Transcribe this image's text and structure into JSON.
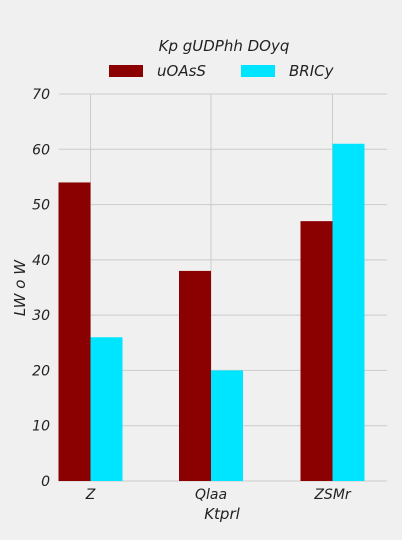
{
  "chart_data": {
    "type": "bar",
    "title": "Kp gUDPhh DOyq",
    "xlabel": "Ktprl",
    "ylabel": "LW o W",
    "categories": [
      "Z",
      "Qlaa",
      "ZSMr"
    ],
    "series": [
      {
        "name": "uOAsS",
        "values": [
          54,
          38,
          47
        ],
        "color": "#8b0000"
      },
      {
        "name": "BRICy",
        "values": [
          26,
          20,
          61
        ],
        "color": "#00e5ff"
      }
    ],
    "ylim": [
      0,
      70
    ],
    "yticks": [
      0,
      10,
      20,
      30,
      40,
      50,
      60,
      70
    ],
    "grid": true,
    "legend": "top-center",
    "background": "#f0f0f0",
    "grid_color": "#cbcbcb"
  }
}
